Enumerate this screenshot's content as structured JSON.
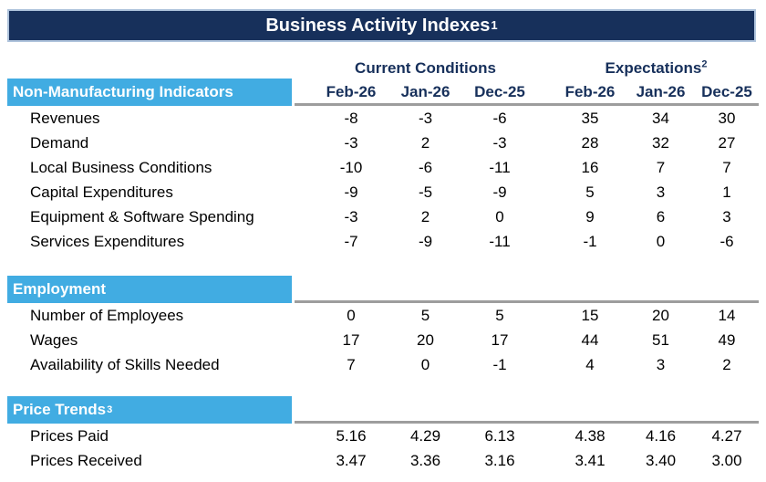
{
  "title": {
    "text": "Business Activity Indexes",
    "sup": "1"
  },
  "header": {
    "groups": [
      {
        "label": "Current Conditions"
      },
      {
        "label": "Expectations",
        "sup": "2"
      }
    ],
    "months": [
      "Feb-26",
      "Jan-26",
      "Dec-25",
      "Feb-26",
      "Jan-26",
      "Dec-25"
    ]
  },
  "sections": [
    {
      "label": "Non-Manufacturing Indicators",
      "rows": [
        {
          "label": "Revenues",
          "values": [
            "-8",
            "-3",
            "-6",
            "35",
            "34",
            "30"
          ]
        },
        {
          "label": "Demand",
          "values": [
            "-3",
            "2",
            "-3",
            "28",
            "32",
            "27"
          ]
        },
        {
          "label": "Local Business Conditions",
          "values": [
            "-10",
            "-6",
            "-11",
            "16",
            "7",
            "7"
          ]
        },
        {
          "label": "Capital Expenditures",
          "values": [
            "-9",
            "-5",
            "-9",
            "5",
            "3",
            "1"
          ]
        },
        {
          "label": "Equipment & Software Spending",
          "values": [
            "-3",
            "2",
            "0",
            "9",
            "6",
            "3"
          ]
        },
        {
          "label": "Services Expenditures",
          "values": [
            "-7",
            "-9",
            "-11",
            "-1",
            "0",
            "-6"
          ]
        }
      ]
    },
    {
      "label": "Employment",
      "rows": [
        {
          "label": "Number of Employees",
          "values": [
            "0",
            "5",
            "5",
            "15",
            "20",
            "14"
          ]
        },
        {
          "label": "Wages",
          "values": [
            "17",
            "20",
            "17",
            "44",
            "51",
            "49"
          ]
        },
        {
          "label": "Availability of Skills Needed",
          "values": [
            "7",
            "0",
            "-1",
            "4",
            "3",
            "2"
          ]
        }
      ]
    },
    {
      "label": "Price Trends",
      "sup": "3",
      "rows": [
        {
          "label": "Prices Paid",
          "values": [
            "5.16",
            "4.29",
            "6.13",
            "4.38",
            "4.16",
            "4.27"
          ]
        },
        {
          "label": "Prices Received",
          "values": [
            "3.47",
            "3.36",
            "3.16",
            "3.41",
            "3.40",
            "3.00"
          ]
        }
      ]
    }
  ],
  "colors": {
    "navy": "#17305B",
    "sectionBlue": "#41ACE2",
    "ruleGray": "#9D9D9D",
    "titleBorder": "#AEC3DC"
  }
}
